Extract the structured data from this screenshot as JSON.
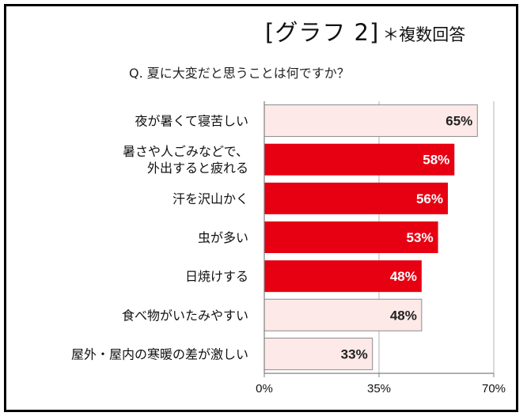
{
  "header": {
    "graph_title": "[グラフ 2]",
    "note": "＊複数回答",
    "question": "Q. 夏に大変だと思うことは何ですか？"
  },
  "chart_data": {
    "type": "bar",
    "orientation": "horizontal",
    "title": "Q. 夏に大変だと思うことは何ですか？",
    "categories": [
      [
        "夜が暑くて寝苦しい"
      ],
      [
        "暑さや人ごみなどで、",
        "外出すると疲れる"
      ],
      [
        "汗を沢山かく"
      ],
      [
        "虫が多い"
      ],
      [
        "日焼けする"
      ],
      [
        "食べ物がいたみやすい"
      ],
      [
        "屋外・屋内の寒暖の差が激しい"
      ]
    ],
    "values": [
      65,
      58,
      56,
      53,
      48,
      48,
      33
    ],
    "value_labels": [
      "65%",
      "58%",
      "56%",
      "53%",
      "48%",
      "48%",
      "33%"
    ],
    "highlighted": [
      false,
      true,
      true,
      true,
      true,
      false,
      false
    ],
    "colors": {
      "highlight_fill": "#e60012",
      "highlight_text": "#ffffff",
      "normal_fill": "#fde9e7",
      "normal_stroke": "#8c8c8c",
      "normal_text": "#222222"
    },
    "xlim": [
      0,
      70
    ],
    "xticks": [
      0,
      35,
      70
    ],
    "xtick_labels": [
      "0%",
      "35%",
      "70%"
    ],
    "grid": true
  }
}
